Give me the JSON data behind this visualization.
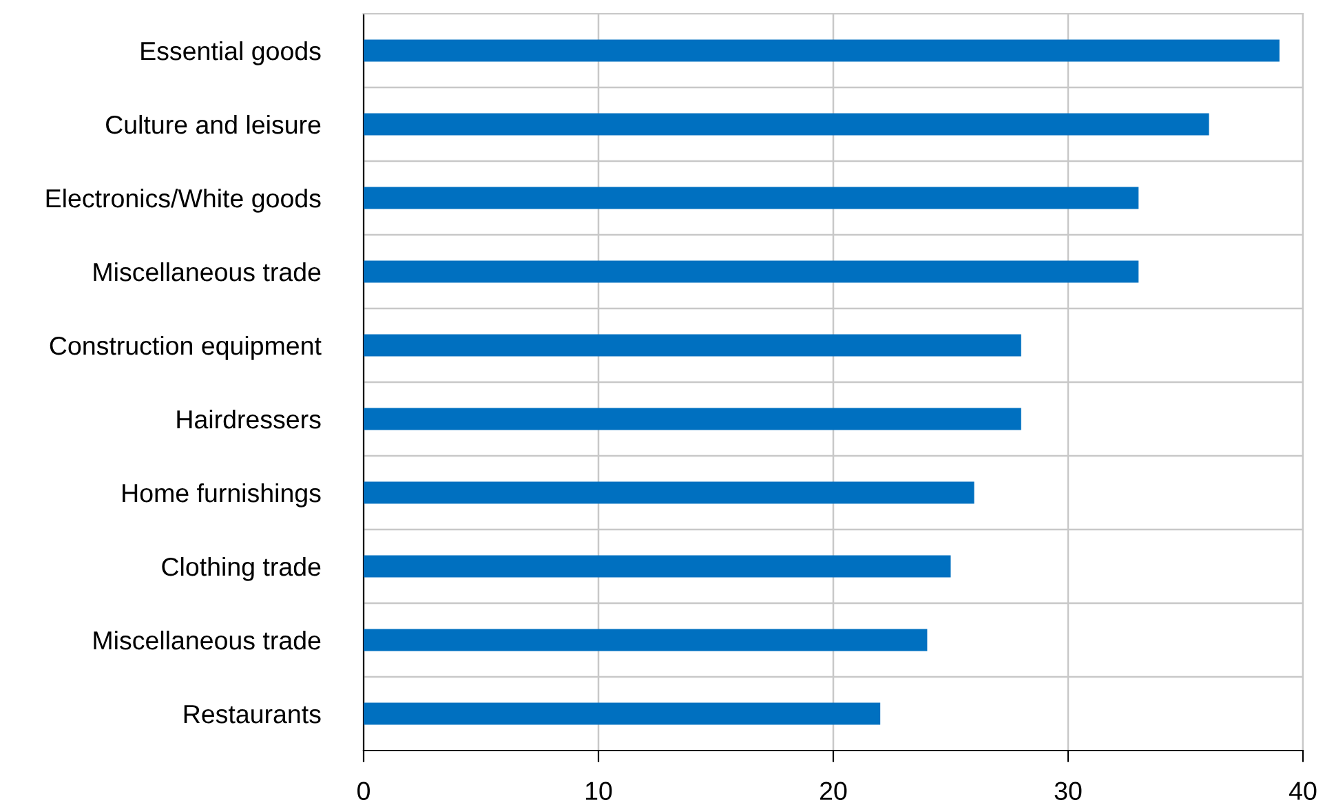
{
  "chart_data": {
    "type": "bar",
    "orientation": "horizontal",
    "categories": [
      "Essential goods",
      "Culture and leisure",
      "Electronics/White goods",
      "Miscellaneous trade",
      "Construction equipment",
      "Hairdressers",
      "Home furnishings",
      "Clothing trade",
      "Miscellaneous trade",
      "Restaurants"
    ],
    "values": [
      39,
      36,
      33,
      33,
      28,
      28,
      26,
      25,
      24,
      22
    ],
    "color": "#0070c0",
    "xlim": [
      0,
      40
    ],
    "xticks": [
      0,
      10,
      20,
      30,
      40
    ],
    "grid": true,
    "legend": false
  }
}
